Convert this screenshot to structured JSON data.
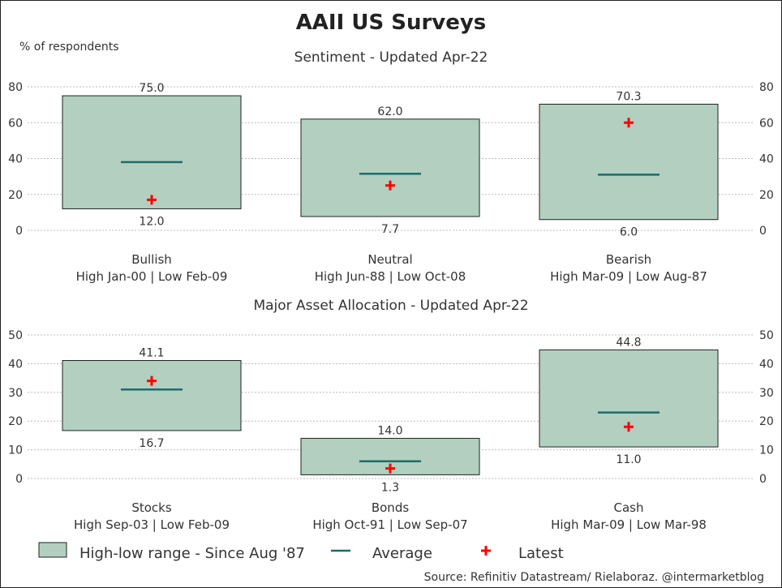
{
  "title": "AAII US Surveys",
  "ylabel": "% of respondents",
  "legend": {
    "range": "High-low range - Since Aug '87",
    "average": "Average",
    "latest": "Latest"
  },
  "source": "Source: Refinitiv Datastream/ Rielaboraz. @intermarketblog",
  "colors": {
    "box_fill": "#b2cfbf",
    "box_stroke": "#222222",
    "average": "#1f6b6b",
    "latest": "#ff0000",
    "grid": "#bbbbbb"
  },
  "chart_data": [
    {
      "type": "range-box",
      "title": "Sentiment - Updated Apr-22",
      "ylim": [
        0,
        80
      ],
      "yticks": [
        "0",
        "20",
        "40",
        "60",
        "80"
      ],
      "categories": [
        "Bullish",
        "Neutral",
        "Bearish"
      ],
      "subtitles": [
        "High Jan-00 | Low Feb-09",
        "High Jun-88 | Low Oct-08",
        "High Mar-09 | Low Aug-87"
      ],
      "high": [
        75.0,
        62.0,
        70.3
      ],
      "low": [
        12.0,
        7.7,
        6.0
      ],
      "high_labels": [
        "75.0",
        "62.0",
        "70.3"
      ],
      "low_labels": [
        "12.0",
        "7.7",
        "6.0"
      ],
      "average": [
        38,
        31.5,
        31
      ],
      "latest": [
        17,
        25,
        60
      ],
      "grid": true
    },
    {
      "type": "range-box",
      "title": "Major Asset Allocation - Updated Apr-22",
      "ylim": [
        0,
        50
      ],
      "yticks": [
        "0",
        "10",
        "20",
        "30",
        "40",
        "50"
      ],
      "categories": [
        "Stocks",
        "Bonds",
        "Cash"
      ],
      "subtitles": [
        "High Sep-03 | Low Feb-09",
        "High Oct-91 | Low Sep-07",
        "High Mar-09 | Low Mar-98"
      ],
      "high": [
        41.1,
        14.0,
        44.8
      ],
      "low": [
        16.7,
        1.3,
        11.0
      ],
      "high_labels": [
        "41.1",
        "14.0",
        "44.8"
      ],
      "low_labels": [
        "16.7",
        "1.3",
        "11.0"
      ],
      "average": [
        31,
        6,
        23
      ],
      "latest": [
        34,
        3.5,
        18
      ],
      "grid": true
    }
  ]
}
